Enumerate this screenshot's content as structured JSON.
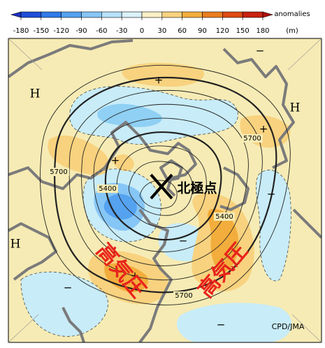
{
  "colorbar": {
    "title": "anomalies",
    "unit": "(m)",
    "ticks": [
      -180,
      -150,
      -120,
      -90,
      -60,
      -30,
      0,
      30,
      60,
      90,
      120,
      150,
      180
    ],
    "colors": [
      "#1c2fc0",
      "#1f4fd8",
      "#2f7ae8",
      "#55a2f0",
      "#86c6f6",
      "#b6e2fa",
      "#dcf2fb",
      "#fbf0c4",
      "#f8d27e",
      "#f2ad3c",
      "#ea7d1e",
      "#de4c12",
      "#c92310",
      "#b01008"
    ]
  },
  "map": {
    "highs": [
      "H",
      "H",
      "H"
    ],
    "plus": [
      "+",
      "+",
      "+",
      "+"
    ],
    "minus": [
      "−",
      "−",
      "−",
      "−",
      "−"
    ],
    "contour_labels": [
      5700,
      5700,
      5700,
      5400,
      5400
    ],
    "north_pole": "北極点",
    "high_pressure": [
      "高気圧",
      "高気圧"
    ],
    "credit": "CPD/JMA"
  }
}
